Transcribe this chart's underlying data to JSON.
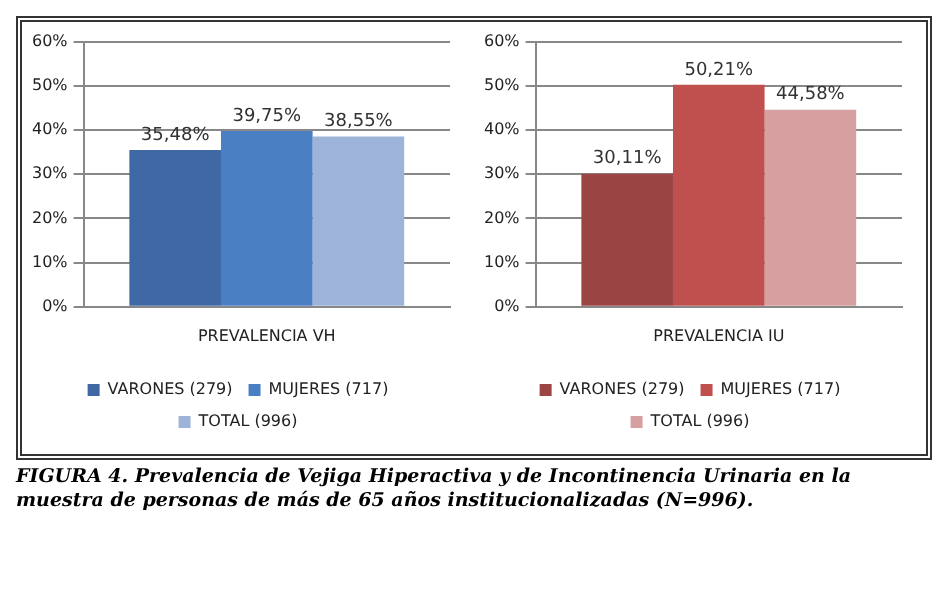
{
  "chart_data": [
    {
      "type": "bar",
      "categories": [
        "PREVALENCIA VH"
      ],
      "series": [
        {
          "name": "VARONES (279)",
          "color": "#3f68a4",
          "values": [
            35.48
          ],
          "value_labels": [
            "35,48%"
          ]
        },
        {
          "name": "MUJERES (717)",
          "color": "#4a7fc4",
          "values": [
            39.75
          ],
          "value_labels": [
            "39,75%"
          ]
        },
        {
          "name": "TOTAL (996)",
          "color": "#9db3d8",
          "values": [
            38.55
          ],
          "value_labels": [
            "38,55%"
          ]
        }
      ],
      "ylim": [
        0,
        60
      ],
      "yticks": [
        {
          "value": 0,
          "label": "0%"
        },
        {
          "value": 10,
          "label": "10%"
        },
        {
          "value": 20,
          "label": "20%"
        },
        {
          "value": 30,
          "label": "30%"
        },
        {
          "value": 40,
          "label": "40%"
        },
        {
          "value": 50,
          "label": "50%"
        },
        {
          "value": 60,
          "label": "60%"
        }
      ],
      "grid": "y",
      "legend": "bottom"
    },
    {
      "type": "bar",
      "categories": [
        "PREVALENCIA IU"
      ],
      "series": [
        {
          "name": "VARONES (279)",
          "color": "#9b4444",
          "values": [
            30.11
          ],
          "value_labels": [
            "30,11%"
          ]
        },
        {
          "name": "MUJERES (717)",
          "color": "#c0504d",
          "values": [
            50.21
          ],
          "value_labels": [
            "50,21%"
          ]
        },
        {
          "name": "TOTAL (996)",
          "color": "#d6a0a0",
          "values": [
            44.58
          ],
          "value_labels": [
            "44,58%"
          ]
        }
      ],
      "ylim": [
        0,
        60
      ],
      "yticks": [
        {
          "value": 0,
          "label": "0%"
        },
        {
          "value": 10,
          "label": "10%"
        },
        {
          "value": 20,
          "label": "20%"
        },
        {
          "value": 30,
          "label": "30%"
        },
        {
          "value": 40,
          "label": "40%"
        },
        {
          "value": 50,
          "label": "50%"
        },
        {
          "value": 60,
          "label": "60%"
        }
      ],
      "grid": "y",
      "legend": "bottom",
      "annotations": [
        "FIGURA 4. Prevalencia de Vejiga Hiperactiva y de Incontinencia Urinaria en la muestra de personas de más de 65 años institucionalizadas (N=996)."
      ]
    }
  ]
}
